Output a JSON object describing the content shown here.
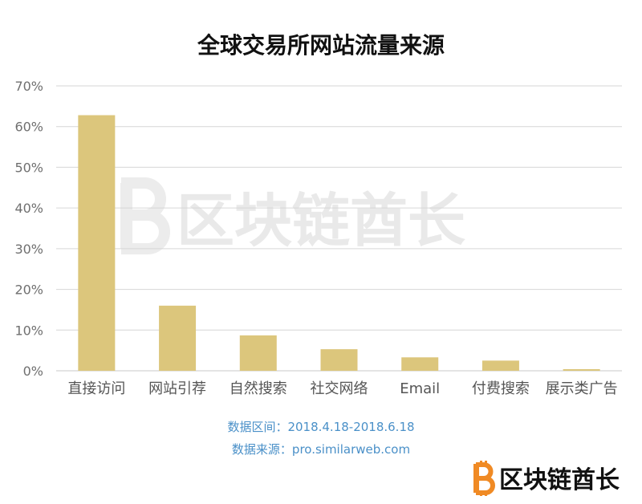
{
  "chart_data": {
    "type": "bar",
    "title": "全球交易所网站流量来源",
    "categories": [
      "直接访问",
      "网站引荐",
      "自然搜索",
      "社交网络",
      "Email",
      "付费搜索",
      "展示类广告"
    ],
    "values": [
      62.8,
      16.0,
      8.7,
      5.3,
      3.3,
      2.5,
      0.4
    ],
    "ylim": [
      0,
      70
    ],
    "yticks": [
      0,
      10,
      20,
      30,
      40,
      50,
      60,
      70
    ],
    "ytick_labels": [
      "0%",
      "10%",
      "20%",
      "30%",
      "40%",
      "50%",
      "60%",
      "70%"
    ],
    "bar_color": "#dcc67c",
    "grid": true
  },
  "notes": {
    "date_range": "数据区间：2018.4.18-2018.6.18",
    "source": "数据来源：pro.similarweb.com"
  },
  "watermark": {
    "text": "区块链酋长"
  },
  "logo": {
    "text": "区块链酋长",
    "icon": "bitcoin-b-icon",
    "color": "#f08a24"
  }
}
